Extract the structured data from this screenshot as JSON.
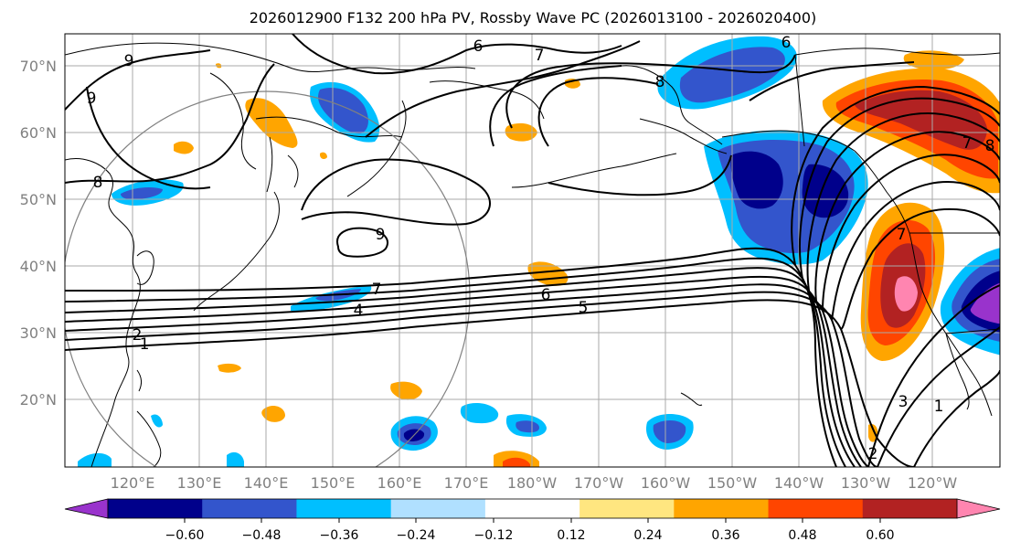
{
  "title": "2026012900 F132 200 hPa PV, Rossby Wave PC (2026013100 - 2026020400)",
  "map": {
    "lon_labels": [
      "120°E",
      "130°E",
      "140°E",
      "150°E",
      "160°E",
      "170°E",
      "180°W",
      "170°W",
      "160°W",
      "150°W",
      "140°W",
      "130°W",
      "120°W"
    ],
    "lat_labels": [
      "70°N",
      "60°N",
      "50°N",
      "40°N",
      "30°N",
      "20°N"
    ],
    "contour_labels": [
      "6",
      "7",
      "8",
      "9",
      "8",
      "9",
      "1",
      "2",
      "7",
      "4",
      "6",
      "5",
      "7",
      "2",
      "3",
      "1",
      "6",
      "8",
      "9",
      "7"
    ]
  },
  "colorbar": {
    "ticks": [
      "−0.60",
      "−0.48",
      "−0.36",
      "−0.24",
      "−0.12",
      "0.12",
      "0.24",
      "0.36",
      "0.48",
      "0.60"
    ],
    "colors": [
      "#9933cc",
      "#00008b",
      "#3355cc",
      "#00bfff",
      "#b0e0ff",
      "#ffffff",
      "#ffe680",
      "#ffa500",
      "#ff4500",
      "#b22222",
      "#ff85b0"
    ]
  }
}
